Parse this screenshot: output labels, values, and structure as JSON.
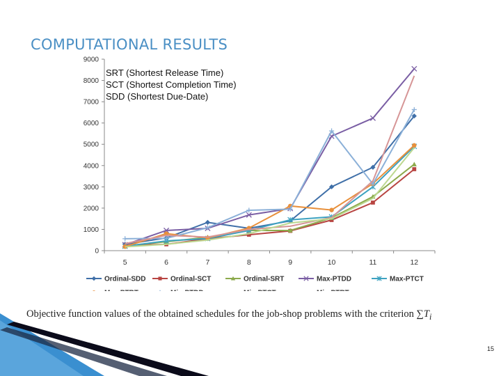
{
  "slide": {
    "title": "COMPUTATIONAL RESULTS",
    "legend_notes": [
      "SRT (Shortest Release Time)",
      "SCT (Shortest Completion Time)",
      "SDD (Shortest Due-Date)"
    ],
    "caption_text": "Objective function values of the obtained schedules for the job-shop problems with the criterion ",
    "caption_math_sum": "∑",
    "caption_math_var": "T",
    "caption_math_sub": "i",
    "page_number": "15"
  },
  "colors": {
    "title": "#4a8fc4",
    "decor_dark": "#0b0b1a",
    "decor_light": "#3a8fd0"
  },
  "chart_data": {
    "type": "line",
    "x": [
      5,
      6,
      7,
      8,
      9,
      10,
      11,
      12
    ],
    "ylim": [
      0,
      9000
    ],
    "yticks": [
      0,
      1000,
      2000,
      3000,
      4000,
      5000,
      6000,
      7000,
      8000,
      9000
    ],
    "grid": false,
    "legend_position": "bottom",
    "series": [
      {
        "name": "Ordinal-SDD",
        "color": "#3f6fa8",
        "marker": "diamond",
        "values": [
          300,
          600,
          1330,
          1050,
          1400,
          3000,
          3920,
          6330
        ]
      },
      {
        "name": "Ordinal-SCT",
        "color": "#b84542",
        "marker": "square",
        "values": [
          250,
          300,
          560,
          750,
          930,
          1440,
          2260,
          3830
        ]
      },
      {
        "name": "Ordinal-SRT",
        "color": "#8caa4c",
        "marker": "triangle",
        "values": [
          220,
          420,
          630,
          950,
          950,
          1540,
          2540,
          4060
        ]
      },
      {
        "name": "Max-PTDD",
        "color": "#7a5ea4",
        "marker": "x",
        "values": [
          280,
          950,
          1050,
          1680,
          1980,
          5380,
          6230,
          8550
        ]
      },
      {
        "name": "Max-PTCT",
        "color": "#3da2c0",
        "marker": "star",
        "values": [
          210,
          460,
          570,
          950,
          1450,
          1590,
          3000,
          4900
        ]
      },
      {
        "name": "Max-PTRT",
        "color": "#e8903c",
        "marker": "circle",
        "values": [
          190,
          800,
          600,
          1060,
          2100,
          1910,
          3150,
          4950
        ]
      },
      {
        "name": "Min-PTDD",
        "color": "#8bb0d8",
        "marker": "plus",
        "values": [
          560,
          580,
          1080,
          1900,
          1950,
          5630,
          3130,
          6630
        ]
      },
      {
        "name": "Min-PTCT",
        "color": "#d69596",
        "marker": "none",
        "values": [
          330,
          720,
          640,
          1000,
          1150,
          1560,
          3280,
          8220
        ]
      },
      {
        "name": "Min-PTRT",
        "color": "#bcd890",
        "marker": "none",
        "values": [
          180,
          300,
          500,
          800,
          1300,
          1500,
          2460,
          4840
        ]
      }
    ]
  }
}
